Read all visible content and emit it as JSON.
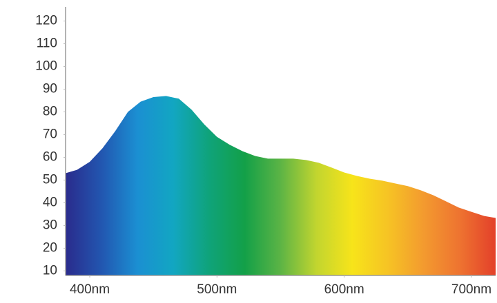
{
  "chart_data": {
    "type": "area",
    "x": [
      381,
      390,
      400,
      410,
      420,
      430,
      440,
      450,
      460,
      470,
      480,
      490,
      500,
      510,
      520,
      530,
      540,
      550,
      560,
      570,
      580,
      590,
      600,
      610,
      620,
      630,
      640,
      650,
      660,
      670,
      680,
      690,
      700,
      710,
      719
    ],
    "values": [
      53,
      54.5,
      58,
      64,
      71.5,
      80,
      84.5,
      86.5,
      87,
      85.8,
      81,
      74.5,
      69,
      65.5,
      62.7,
      60.6,
      59.4,
      59.4,
      59.4,
      58.8,
      57.6,
      55.5,
      53.3,
      51.8,
      50.6,
      49.7,
      48.5,
      47.3,
      45.5,
      43.3,
      40.6,
      37.9,
      36,
      34.2,
      33.3
    ],
    "colors": [
      "#2a2b8c",
      "#2256b0",
      "#1b8fd2",
      "#12a6c2",
      "#0fa37a",
      "#13a048",
      "#5cb445",
      "#c2d52f",
      "#f7e41a",
      "#f6c324",
      "#f39a2f",
      "#ee7330",
      "#e3402a"
    ],
    "xlim": [
      381,
      719
    ],
    "ylim": [
      8,
      125
    ],
    "xticks": [
      {
        "value": 400,
        "label": "400nm"
      },
      {
        "value": 500,
        "label": "500nm"
      },
      {
        "value": 600,
        "label": "600nm"
      },
      {
        "value": 700,
        "label": "700nm"
      }
    ],
    "yticks": [
      10,
      20,
      30,
      40,
      50,
      60,
      70,
      80,
      90,
      100,
      110,
      120
    ]
  }
}
